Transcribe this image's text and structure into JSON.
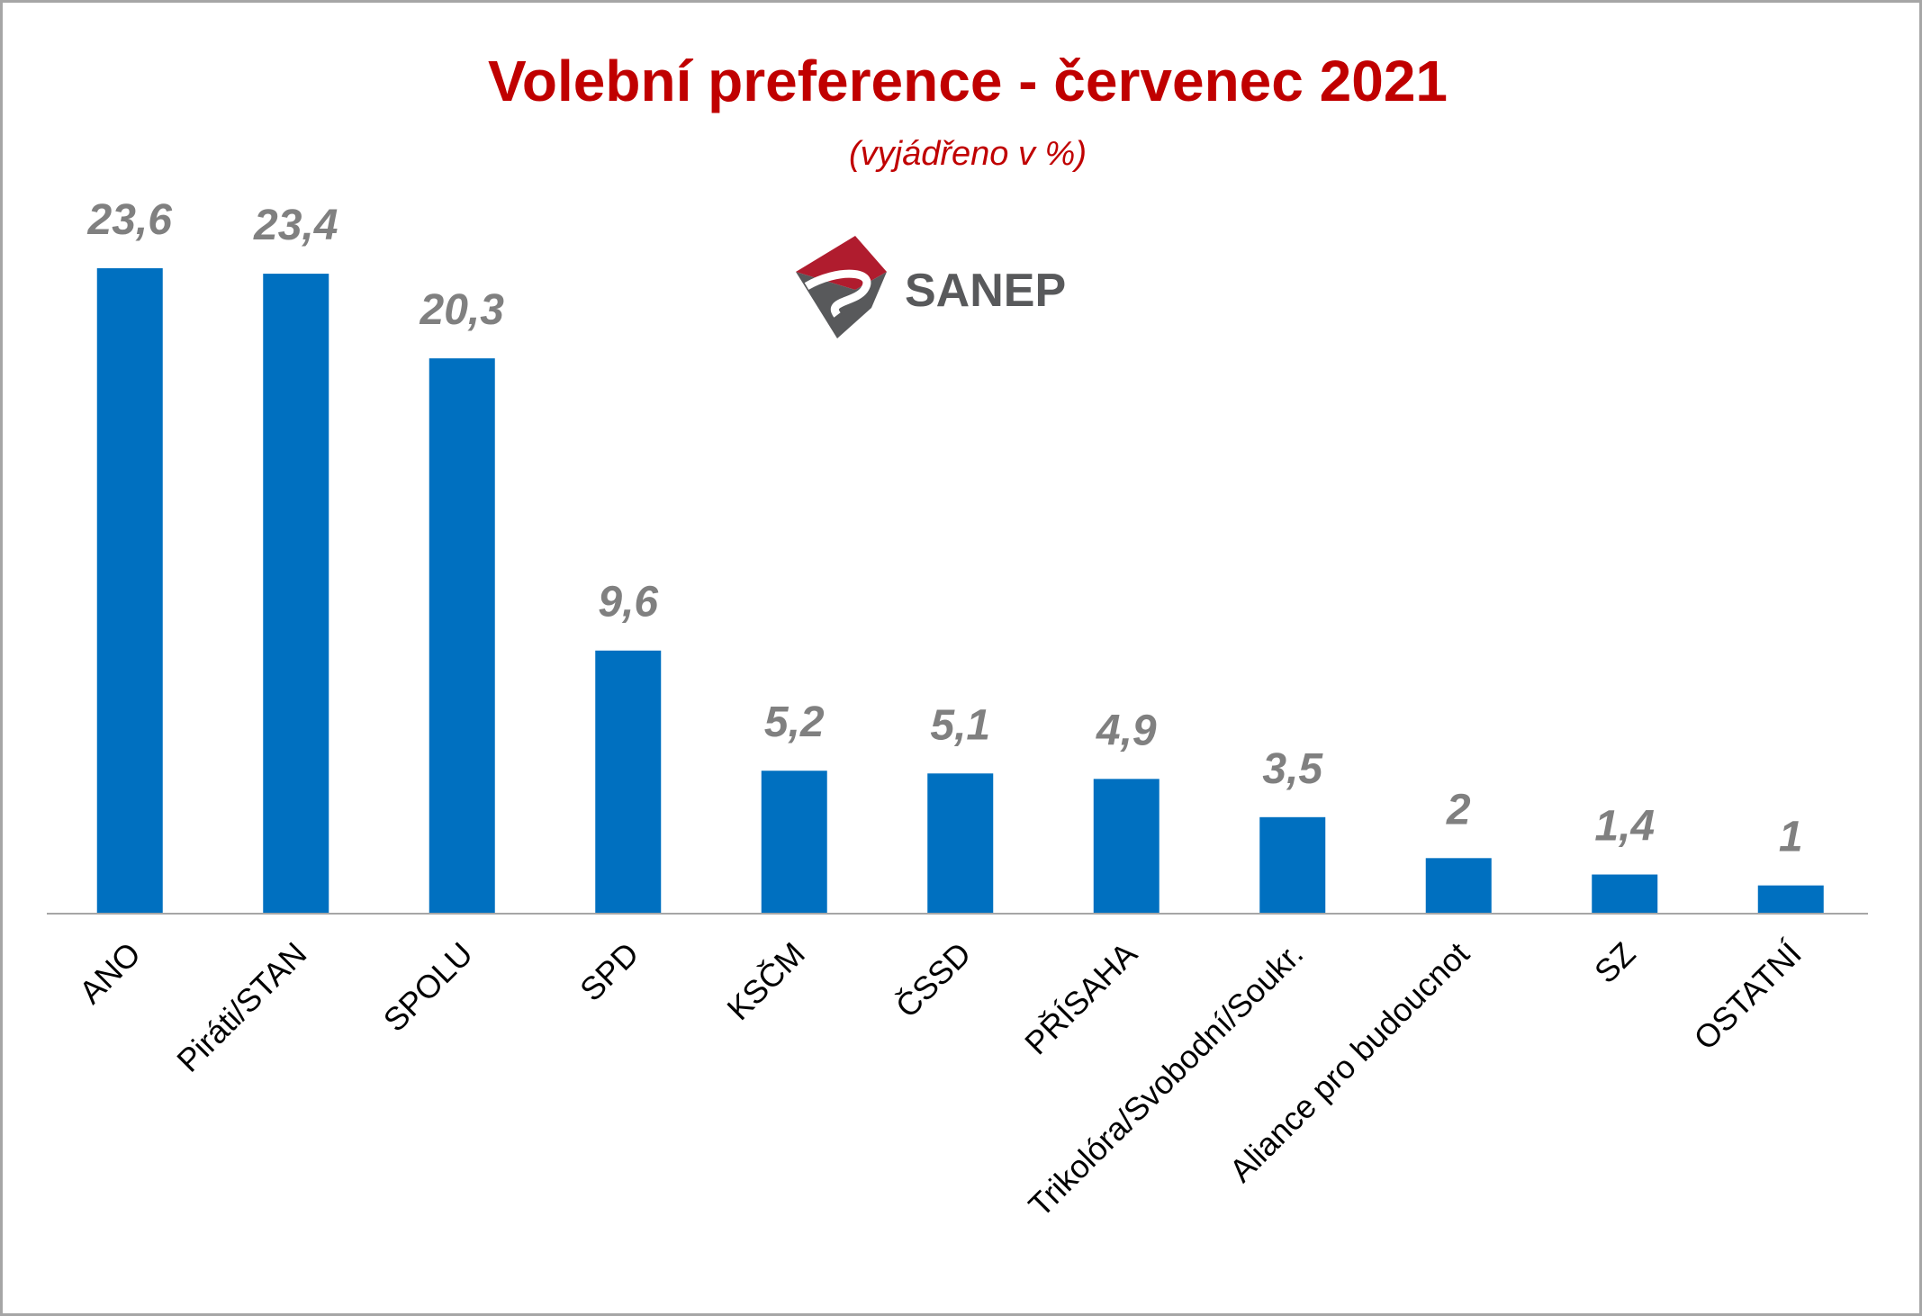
{
  "chart_data": {
    "type": "bar",
    "title": "Volební preference - červenec 2021",
    "subtitle": "(vyjádřeno v %)",
    "categories": [
      "ANO",
      "Piráti/STAN",
      "SPOLU",
      "SPD",
      "KSČM",
      "ČSSD",
      "PŘÍSAHA",
      "Trikolóra/Svobodní/Soukr.",
      "Aliance pro budoucnot",
      "SZ",
      "OSTATNÍ"
    ],
    "values": [
      23.6,
      23.4,
      20.3,
      9.6,
      5.2,
      5.1,
      4.9,
      3.5,
      2,
      1.4,
      1
    ],
    "value_labels": [
      "23,6",
      "23,4",
      "20,3",
      "9,6",
      "5,2",
      "5,1",
      "4,9",
      "3,5",
      "2",
      "1,4",
      "1"
    ],
    "ylim": [
      0,
      23.6
    ],
    "grid": false,
    "legend": "none"
  },
  "logo": {
    "text": "SANEP"
  },
  "colors": {
    "bar": "#0070c0",
    "title": "#c00000",
    "value_label": "#808080",
    "axis": "#a6a6a6",
    "category_label": "#000000",
    "frame": "#a6a6a6",
    "logo_red": "#b01c2e",
    "logo_gray": "#58595b"
  }
}
